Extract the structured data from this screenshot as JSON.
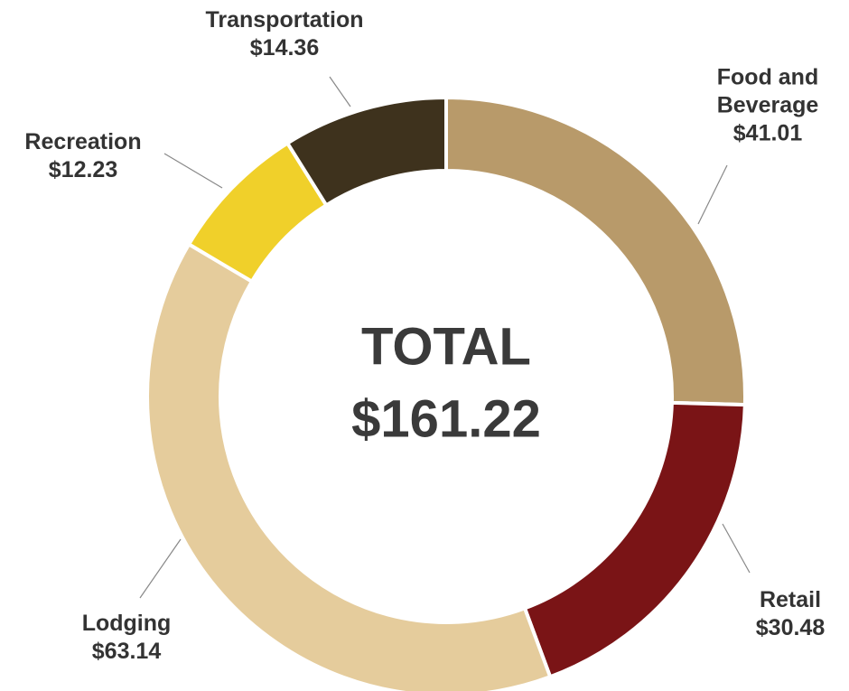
{
  "chart_data": {
    "type": "donut",
    "categories": [
      "Food and Beverage",
      "Retail",
      "Lodging",
      "Recreation",
      "Transportation"
    ],
    "values": [
      41.01,
      30.48,
      63.14,
      12.23,
      14.36
    ],
    "value_labels": [
      "$41.01",
      "$30.48",
      "$63.14",
      "$12.23",
      "$14.36"
    ],
    "colors": [
      "#b89a6a",
      "#7a1416",
      "#e5cc9c",
      "#f0d02a",
      "#3e321d"
    ],
    "center_title": "TOTAL",
    "center_value": "$161.22"
  }
}
